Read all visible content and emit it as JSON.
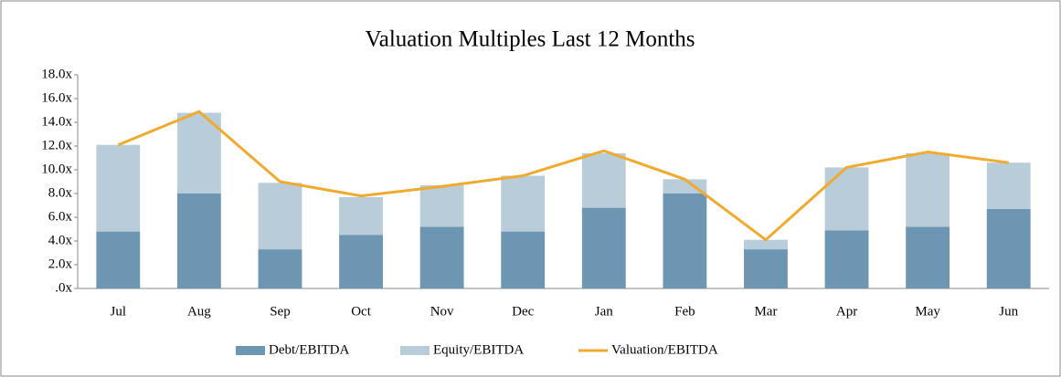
{
  "chart_data": {
    "type": "bar_line",
    "title": "Valuation Multiples Last 12 Months",
    "categories": [
      "Jul",
      "Aug",
      "Sep",
      "Oct",
      "Nov",
      "Dec",
      "Jan",
      "Feb",
      "Mar",
      "Apr",
      "May",
      "Jun"
    ],
    "series": [
      {
        "name": "Debt/EBITDA",
        "color": "#6d96b2",
        "kind": "bar",
        "values": [
          4.8,
          8.0,
          3.3,
          4.5,
          5.2,
          4.8,
          6.8,
          8.0,
          3.3,
          4.9,
          5.2,
          6.7
        ]
      },
      {
        "name": "Equity/EBITDA",
        "color": "#b8ccd9",
        "kind": "bar",
        "values": [
          7.3,
          6.8,
          5.6,
          3.2,
          3.5,
          4.7,
          4.6,
          1.2,
          0.8,
          5.3,
          6.2,
          3.9
        ]
      },
      {
        "name": "Valuation/EBITDA",
        "color": "#f0ab2e",
        "kind": "line",
        "values": [
          12.1,
          14.9,
          9.0,
          7.8,
          8.6,
          9.5,
          11.6,
          9.2,
          4.1,
          10.2,
          11.5,
          10.6
        ]
      }
    ],
    "stacked": true,
    "ylim": [
      0,
      18
    ],
    "yticks": [
      {
        "value": 0,
        "label": ".0x"
      },
      {
        "value": 2,
        "label": "2.0x"
      },
      {
        "value": 4,
        "label": "4.0x"
      },
      {
        "value": 6,
        "label": "6.0x"
      },
      {
        "value": 8,
        "label": "8.0x"
      },
      {
        "value": 10,
        "label": "10.0x"
      },
      {
        "value": 12,
        "label": "12.0x"
      },
      {
        "value": 14,
        "label": "14.0x"
      },
      {
        "value": 16,
        "label": "16.0x"
      },
      {
        "value": 18,
        "label": "18.0x"
      }
    ],
    "legend": "bottom"
  }
}
